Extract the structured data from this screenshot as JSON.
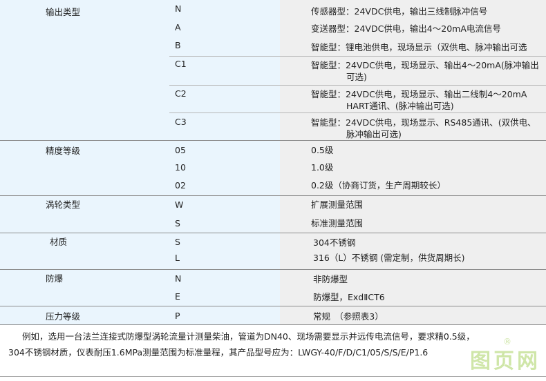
{
  "groups": [
    {
      "label": "输出类型",
      "rows": [
        {
          "code": "N",
          "desc": "传感器型：24VDC供电，输出三线制脉冲信号"
        },
        {
          "code": "A",
          "desc": "变送器型：24VDC供电，输出4～20mA电流信号"
        },
        {
          "code": "B",
          "desc": "智能型：锂电池供电，现场显示（双供电、脉冲输出可选"
        },
        {
          "code": "C1",
          "desc": "智能型：24VDC供电，现场显示、输出4～20mA(脉冲输出",
          "desc2": "可选)"
        },
        {
          "code": "C2",
          "desc": "智能型：24VDC供电，现场显示、输出二线制4～20mA",
          "desc2": "HART通讯、(脉冲输出可选)"
        },
        {
          "code": "C3",
          "desc": "智能型：24VDC供电，现场显示、RS485通讯、(双供电、",
          "desc2": "脉冲输出可选)"
        }
      ]
    },
    {
      "label": "精度等级",
      "rows": [
        {
          "code": "05",
          "desc": "0.5级"
        },
        {
          "code": "10",
          "desc": "1.0级"
        },
        {
          "code": "02",
          "desc": "0.2级（协商订货，生产周期较长）"
        }
      ]
    },
    {
      "label": "涡轮类型",
      "rows": [
        {
          "code": "W",
          "desc": "扩展测量范围"
        },
        {
          "code": "S",
          "desc": "标准测量范围"
        }
      ]
    },
    {
      "label": "材质",
      "rows": [
        {
          "code": "S",
          "desc": "304不锈钢"
        },
        {
          "code": "L",
          "desc": "316（L）不锈钢 (需定制，供货周期长)"
        }
      ]
    },
    {
      "label": "防爆",
      "rows": [
        {
          "code": "N",
          "desc": "非防爆型"
        },
        {
          "code": "E",
          "desc": "防爆型，ExdⅡCT6"
        }
      ]
    },
    {
      "label": "压力等级",
      "rows": [
        {
          "code": "P",
          "desc": "常规　（参照表3）"
        }
      ]
    }
  ],
  "example": {
    "line1": "例如，选用一台法兰连接式防爆型涡轮流量计测量柴油，管道为DN40、现场需要显示并远传电流信号，要求精0.5级，",
    "line2": "304不锈钢材质，仪表耐压1.6MPa测量范围为标准量程，其产品型号应为：LWGY-40/F/D/C1/05/S/S/E/P1.6"
  },
  "watermark": {
    "text": "图页网",
    "mark": "®",
    "color": "#cfe6a8"
  },
  "colors": {
    "left_bg": "#eaf5fd",
    "right_bg": "#efefef",
    "rule": "#8a8a8a"
  }
}
